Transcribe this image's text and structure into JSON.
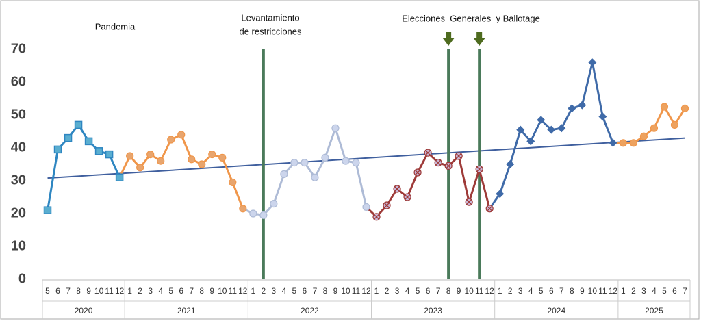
{
  "chart_data": {
    "type": "line",
    "ylim": [
      0,
      75
    ],
    "yticks": [
      0,
      10,
      20,
      30,
      40,
      50,
      60,
      70
    ],
    "years": [
      {
        "label": "2020",
        "color": "#2e86c1",
        "marker": "square",
        "marker_fill": "#5aaed0",
        "months": [
          "5",
          "6",
          "7",
          "8",
          "9",
          "10",
          "11",
          "12"
        ],
        "values": [
          21,
          39.5,
          43,
          47,
          42,
          39,
          38,
          31
        ]
      },
      {
        "label": "2021",
        "color": "#f0964a",
        "marker": "circle",
        "marker_fill": "#e8a56e",
        "months": [
          "1",
          "2",
          "3",
          "4",
          "5",
          "6",
          "7",
          "8",
          "9",
          "10",
          "11",
          "12"
        ],
        "values": [
          37.5,
          34,
          38,
          36,
          42.5,
          44,
          36.5,
          35,
          38,
          37,
          29.5,
          21.5
        ]
      },
      {
        "label": "2022",
        "color": "#aebbd6",
        "marker": "circle",
        "marker_fill": "#ccd5ec",
        "months": [
          "1",
          "2",
          "3",
          "4",
          "5",
          "6",
          "7",
          "8",
          "9",
          "10",
          "11",
          "12"
        ],
        "values": [
          20,
          19.5,
          23,
          32,
          35.5,
          35.5,
          31,
          37,
          46,
          36,
          35.5,
          22
        ]
      },
      {
        "label": "2023",
        "color": "#9e3a38",
        "marker": "cross",
        "marker_fill": "#c9b6d6",
        "months": [
          "1",
          "2",
          "3",
          "4",
          "5",
          "6",
          "7",
          "8",
          "9",
          "10",
          "11",
          "12"
        ],
        "values": [
          19,
          22.5,
          27.5,
          25,
          32.5,
          38.5,
          35.5,
          34.5,
          37.5,
          23.5,
          33.5,
          21.5
        ]
      },
      {
        "label": "2024",
        "color": "#3f6aa8",
        "marker": "diamond",
        "marker_fill": "#3f6aa8",
        "months": [
          "1",
          "2",
          "3",
          "4",
          "5",
          "6",
          "7",
          "8",
          "9",
          "10",
          "11",
          "12"
        ],
        "values": [
          26,
          35,
          45.5,
          42,
          48.5,
          45.5,
          46,
          52,
          53,
          66,
          49.5,
          41.5
        ]
      },
      {
        "label": "2025",
        "color": "#f0964a",
        "marker": "circle",
        "marker_fill": "#eda25f",
        "months": [
          "1",
          "2",
          "3",
          "4",
          "5",
          "6",
          "7"
        ],
        "values": [
          41.5,
          41.5,
          43.5,
          46,
          52.5,
          47,
          52
        ]
      }
    ],
    "trendline": {
      "color": "#3f5f9e",
      "values": [
        30.8,
        43
      ]
    },
    "event_lines": {
      "color": "#4a7a5a",
      "positions": [
        21,
        39,
        42
      ],
      "arrows": [
        39,
        42
      ],
      "arrow_color": "#4e6b1f"
    },
    "annotations": {
      "pandemic": "Pandemia",
      "lifting": [
        "Levantamiento",
        "de restricciones"
      ],
      "elections": "Elecciones  Generales  y Ballotage"
    }
  }
}
